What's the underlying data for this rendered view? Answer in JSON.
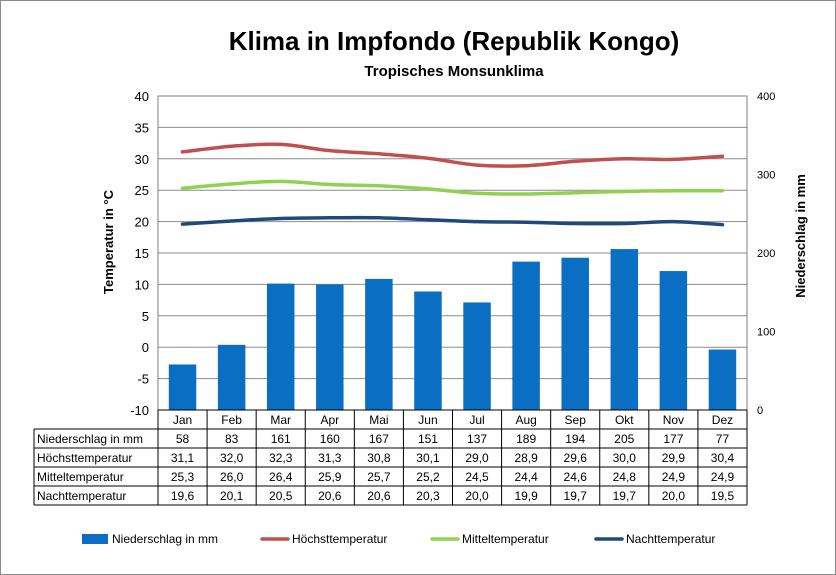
{
  "chart_data": {
    "type": "bar",
    "title": "Klima in Impfondo (Republik Kongo)",
    "subtitle": "Tropisches Monsunklima",
    "categories": [
      "Jan",
      "Feb",
      "Mar",
      "Apr",
      "Mai",
      "Jun",
      "Jul",
      "Aug",
      "Sep",
      "Okt",
      "Nov",
      "Dez"
    ],
    "ylabel": "Temperatur in °C",
    "y2label": "Niederschlag in mm",
    "ylim": [
      -10,
      40
    ],
    "yticks": [
      "40",
      "35",
      "30",
      "25",
      "20",
      "15",
      "10",
      "5",
      "0",
      "-5",
      "-10"
    ],
    "y2lim": [
      0,
      400
    ],
    "y2ticks": [
      "400",
      "300",
      "200",
      "100",
      "0"
    ],
    "grid": true,
    "legend_position": "bottom",
    "series": [
      {
        "name": "Niederschlag in mm",
        "type": "bar",
        "axis": "right",
        "color": "#0a6fc2",
        "values": [
          58,
          83,
          161,
          160,
          167,
          151,
          137,
          189,
          194,
          205,
          177,
          77
        ],
        "labels": [
          "58",
          "83",
          "161",
          "160",
          "167",
          "151",
          "137",
          "189",
          "194",
          "205",
          "177",
          "77"
        ]
      },
      {
        "name": "Höchsttemperatur",
        "type": "line",
        "axis": "left",
        "color": "#c0504d",
        "values": [
          31.1,
          32.0,
          32.3,
          31.3,
          30.8,
          30.1,
          29.0,
          28.9,
          29.6,
          30.0,
          29.9,
          30.4
        ],
        "labels": [
          "31,1",
          "32,0",
          "32,3",
          "31,3",
          "30,8",
          "30,1",
          "29,0",
          "28,9",
          "29,6",
          "30,0",
          "29,9",
          "30,4"
        ]
      },
      {
        "name": "Mitteltemperatur",
        "type": "line",
        "axis": "left",
        "color": "#92d050",
        "values": [
          25.3,
          26.0,
          26.4,
          25.9,
          25.7,
          25.2,
          24.5,
          24.4,
          24.6,
          24.8,
          24.9,
          24.9
        ],
        "labels": [
          "25,3",
          "26,0",
          "26,4",
          "25,9",
          "25,7",
          "25,2",
          "24,5",
          "24,4",
          "24,6",
          "24,8",
          "24,9",
          "24,9"
        ]
      },
      {
        "name": "Nachttemperatur",
        "type": "line",
        "axis": "left",
        "color": "#1f497d",
        "values": [
          19.6,
          20.1,
          20.5,
          20.6,
          20.6,
          20.3,
          20.0,
          19.9,
          19.7,
          19.7,
          20.0,
          19.5
        ],
        "labels": [
          "19,6",
          "20,1",
          "20,5",
          "20,6",
          "20,6",
          "20,3",
          "20,0",
          "19,9",
          "19,7",
          "19,7",
          "20,0",
          "19,5"
        ]
      }
    ]
  }
}
